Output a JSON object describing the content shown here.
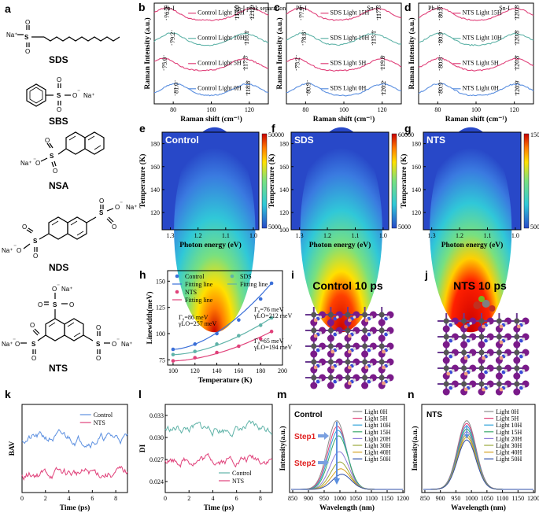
{
  "panel_labels": [
    "a",
    "b",
    "c",
    "d",
    "e",
    "f",
    "g",
    "h",
    "i",
    "j",
    "k",
    "l",
    "m",
    "n"
  ],
  "molecules": [
    {
      "name": "SDS",
      "ion": "Na⁺",
      "charge": "⁻"
    },
    {
      "name": "SBS",
      "ion": "Na⁺",
      "charge": "⁻"
    },
    {
      "name": "NSA",
      "ion": "Na⁺",
      "charge": "⁻"
    },
    {
      "name": "NDS",
      "ion": "Na⁺",
      "charge": "⁻"
    },
    {
      "name": "NTS",
      "ion": "Na⁺",
      "charge": "⁻"
    }
  ],
  "atom_labels": {
    "S": "S",
    "O": "O"
  },
  "colors": {
    "control": "#5b8fe0",
    "nts": "#e0417a",
    "sds": "#5fb3a8",
    "fit_blue": "#3a6fd8",
    "fit_pink": "#e0417a"
  },
  "chart_data": [
    {
      "id": "b",
      "type": "line",
      "xlabel": "Raman shift (cm⁻¹)",
      "ylabel": "Raman Intensity (a.u.)",
      "xlim": [
        70,
        130
      ],
      "xticks": [
        80,
        100,
        120
      ],
      "annotations": [
        "Pb-I",
        "Sn-I peak separation"
      ],
      "series": [
        {
          "name": "Control Light 15H",
          "color": "#e0417a",
          "peak_labels": [
            "76.3",
            "113.0",
            "121.0"
          ]
        },
        {
          "name": "Control Light 10H",
          "color": "#5fb3a8",
          "peak_labels": [
            "79.2",
            "118.1"
          ]
        },
        {
          "name": "Control Light 5H",
          "color": "#e0417a",
          "peak_labels": [
            "75.0",
            "117.3"
          ]
        },
        {
          "name": "Control Light 0H",
          "color": "#5b8fe0",
          "peak_labels": [
            "81.0",
            "118.8"
          ]
        }
      ]
    },
    {
      "id": "c",
      "type": "line",
      "xlabel": "Raman shift (cm⁻¹)",
      "ylabel": "Raman Intensity (a.u.)",
      "xlim": [
        70,
        130
      ],
      "xticks": [
        80,
        100,
        120
      ],
      "annotations": [
        "Pb-I",
        "Sn-I"
      ],
      "series": [
        {
          "name": "SDS Light 15H",
          "color": "#e0417a",
          "peak_labels": [
            "77.5",
            "117.6"
          ]
        },
        {
          "name": "SDS Light 10H",
          "color": "#5fb3a8",
          "peak_labels": [
            "78.6",
            "115.1"
          ]
        },
        {
          "name": "SDS Light 5H",
          "color": "#e0417a",
          "peak_labels": [
            "75.2",
            "119.8"
          ]
        },
        {
          "name": "SDS Light 0H",
          "color": "#5b8fe0",
          "peak_labels": [
            "80.9",
            "120.2"
          ]
        }
      ]
    },
    {
      "id": "d",
      "type": "line",
      "xlabel": "Raman shift (cm⁻¹)",
      "ylabel": "Raman Intensity (a.u.)",
      "xlim": [
        70,
        130
      ],
      "xticks": [
        80,
        100,
        120
      ],
      "annotations": [
        "Pb-I",
        "Sn-I"
      ],
      "series": [
        {
          "name": "NTS Light 15H",
          "color": "#e0417a",
          "peak_labels": [
            "80.8",
            "120.8"
          ]
        },
        {
          "name": "NTS Light 10H",
          "color": "#5fb3a8",
          "peak_labels": [
            "80.9",
            "120.8"
          ]
        },
        {
          "name": "NTS Light 5H",
          "color": "#e0417a",
          "peak_labels": [
            "80.8",
            "120.8"
          ]
        },
        {
          "name": "NTS Light 0H",
          "color": "#5b8fe0",
          "peak_labels": [
            "80.9",
            "120.9"
          ]
        }
      ]
    },
    {
      "id": "e",
      "type": "heatmap",
      "title": "Control",
      "xlabel": "Photon energy (eV)",
      "ylabel": "Temperature (K)",
      "xticks": [
        "1.3",
        "1.2",
        "1.1",
        "1.0"
      ],
      "yticks": [
        120,
        140,
        160,
        180
      ],
      "colorbar": [
        "50000",
        "5000"
      ],
      "peak_energy": 1.14
    },
    {
      "id": "f",
      "type": "heatmap",
      "title": "SDS",
      "xlabel": "Photon energy (eV)",
      "ylabel": "Temperature (K)",
      "xticks": [
        "1.3",
        "1.2",
        "1.1",
        "1.0"
      ],
      "yticks": [
        100,
        120,
        140,
        160,
        180
      ],
      "colorbar": [
        "60000",
        "5000"
      ],
      "peak_energy": 1.15
    },
    {
      "id": "g",
      "type": "heatmap",
      "title": "NTS",
      "xlabel": "Photon energy (eV)",
      "ylabel": "Temperature (K)",
      "xticks": [
        "1.3",
        "1.2",
        "1.1",
        "1.0"
      ],
      "yticks": [
        120,
        140,
        160,
        180
      ],
      "colorbar": [
        "150000",
        "5000"
      ],
      "peak_energy": 1.16
    },
    {
      "id": "h",
      "type": "scatter",
      "xlabel": "Temperature (K)",
      "ylabel": "Linewidth(meV)",
      "xlim": [
        95,
        200
      ],
      "ylim": [
        70,
        160
      ],
      "xticks": [
        100,
        120,
        140,
        160,
        180,
        200
      ],
      "yticks": [
        75,
        100,
        125,
        150
      ],
      "legend": [
        "Control",
        "SDS",
        "Fitting line",
        "Fitting line",
        "NTS",
        "Fitting line"
      ],
      "annotations": [
        "Γ₀=86 meV",
        "γLO=257 meV",
        "Γ₀=76 meV",
        "γLO=212 meV",
        "Γ₀=65 meV",
        "γLO=194 meV"
      ],
      "series": [
        {
          "name": "Control",
          "x": [
            100,
            120,
            140,
            160,
            180,
            190
          ],
          "y": [
            85,
            90,
            100,
            113,
            133,
            148
          ]
        },
        {
          "name": "SDS",
          "x": [
            100,
            120,
            140,
            160,
            180,
            190
          ],
          "y": [
            80,
            83,
            90,
            98,
            108,
            115
          ]
        },
        {
          "name": "NTS",
          "x": [
            100,
            120,
            140,
            160,
            180,
            190
          ],
          "y": [
            74,
            77,
            82,
            88,
            95,
            102
          ]
        }
      ]
    },
    {
      "id": "k",
      "type": "line",
      "xlabel": "Time (ps)",
      "ylabel": "BAV",
      "xticks": [
        0,
        2,
        4,
        6,
        8
      ],
      "series": [
        {
          "name": "Control",
          "color": "#5b8fe0"
        },
        {
          "name": "NTS",
          "color": "#e0417a"
        }
      ]
    },
    {
      "id": "l",
      "type": "line",
      "xlabel": "Time (ps)",
      "ylabel": "DI",
      "xticks": [
        0,
        2,
        4,
        6,
        8
      ],
      "yticks": [
        "0.024",
        "0.027",
        "0.030",
        "0.033"
      ],
      "series": [
        {
          "name": "Control",
          "color": "#5fb3a8"
        },
        {
          "name": "NTS",
          "color": "#e0417a"
        }
      ]
    },
    {
      "id": "m",
      "type": "line",
      "title": "Control",
      "xlabel": "Wavelength (nm)",
      "ylabel": "Intensity(a.u.)",
      "xticks": [
        850,
        900,
        950,
        1000,
        1050,
        1100,
        1150,
        1200
      ],
      "annotations": [
        "Step1",
        "Step2"
      ],
      "series": [
        {
          "name": "Light 0H",
          "color": "#8c8c8c",
          "peak": 990,
          "amp": 1.0
        },
        {
          "name": "Light 5H",
          "color": "#e0417a",
          "peak": 992,
          "amp": 0.92
        },
        {
          "name": "Light 10H",
          "color": "#2fa4d8",
          "peak": 994,
          "amp": 0.86
        },
        {
          "name": "Light 15H",
          "color": "#3aa86a",
          "peak": 996,
          "amp": 0.78
        },
        {
          "name": "Light 20H",
          "color": "#8e7ad8",
          "peak": 998,
          "amp": 0.55
        },
        {
          "name": "Light 30H",
          "color": "#9aa83a",
          "peak": 1000,
          "amp": 0.4
        },
        {
          "name": "Light 40H",
          "color": "#d4a020",
          "peak": 1003,
          "amp": 0.3
        },
        {
          "name": "Light 50H",
          "color": "#2f4fa8",
          "peak": 1006,
          "amp": 0.22
        }
      ]
    },
    {
      "id": "n",
      "type": "line",
      "title": "NTS",
      "xlabel": "Wavelength (nm)",
      "ylabel": "Intensity(a.u.)",
      "xticks": [
        850,
        900,
        950,
        1000,
        1050,
        1100,
        1150,
        1200
      ],
      "series": [
        {
          "name": "Light 0H",
          "color": "#8c8c8c",
          "peak": 985,
          "amp": 1.0
        },
        {
          "name": "Light 5H",
          "color": "#e0417a",
          "peak": 985,
          "amp": 0.96
        },
        {
          "name": "Light 10H",
          "color": "#2fa4d8",
          "peak": 985,
          "amp": 0.92
        },
        {
          "name": "Light 15H",
          "color": "#3aa86a",
          "peak": 985,
          "amp": 0.88
        },
        {
          "name": "Light 20H",
          "color": "#8e7ad8",
          "peak": 985,
          "amp": 0.84
        },
        {
          "name": "Light 30H",
          "color": "#9aa83a",
          "peak": 985,
          "amp": 0.8
        },
        {
          "name": "Light 40H",
          "color": "#d4a020",
          "peak": 985,
          "amp": 0.76
        },
        {
          "name": "Light 50H",
          "color": "#2f4fa8",
          "peak": 985,
          "amp": 0.72
        }
      ]
    }
  ],
  "sim_titles": {
    "i": "Control 10 ps",
    "j": "NTS 10 ps"
  }
}
